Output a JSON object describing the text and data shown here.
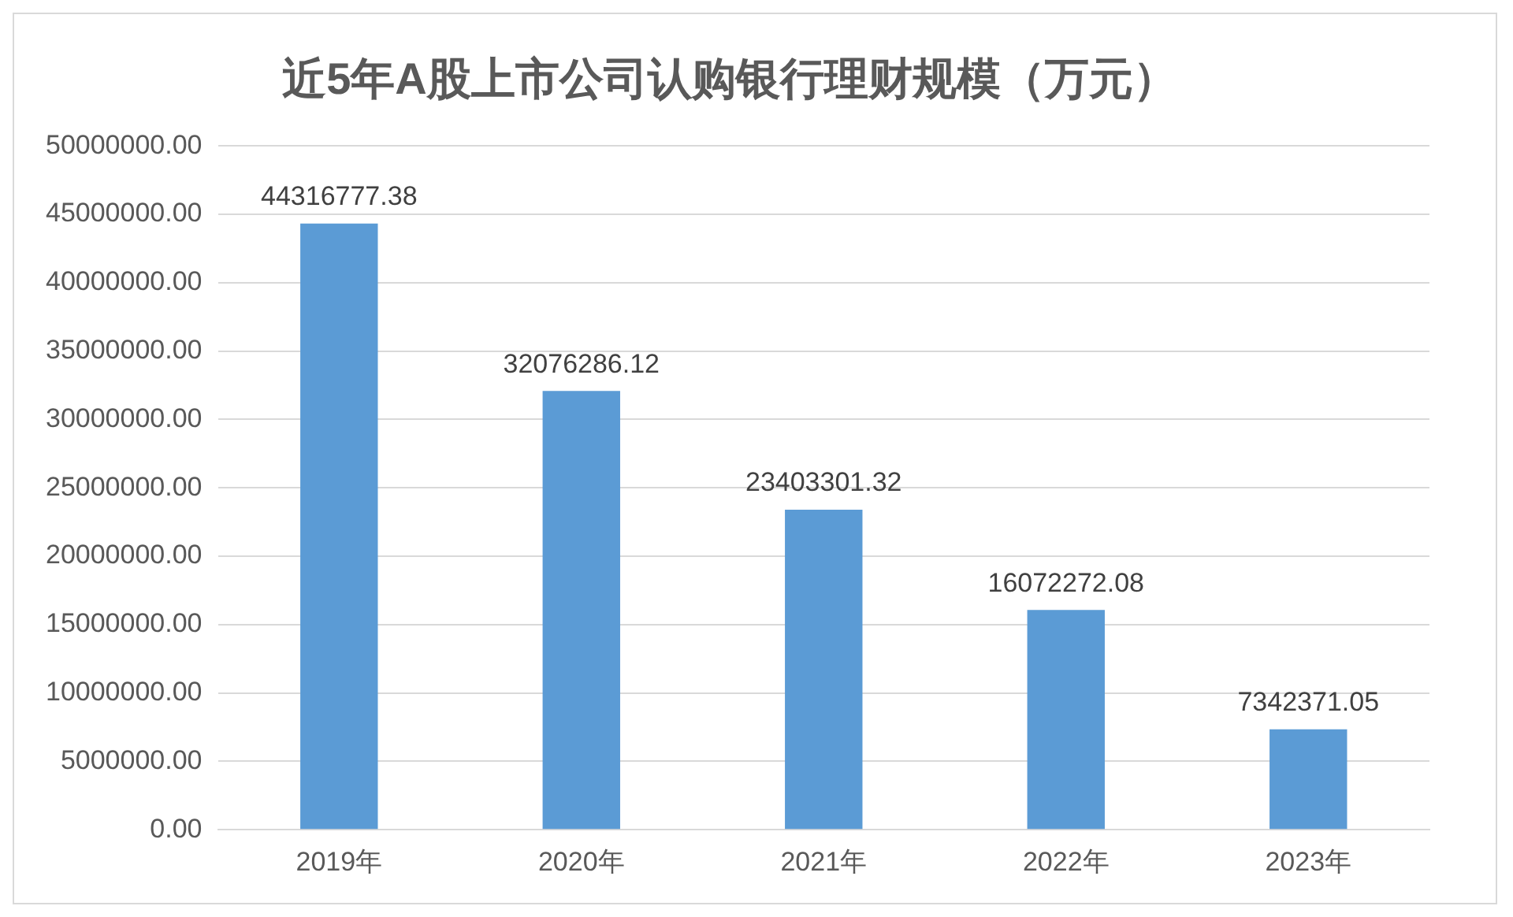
{
  "chart_data": {
    "type": "bar",
    "title": "近5年A股上市公司认购银行理财规模（万元）",
    "categories": [
      "2019年",
      "2020年",
      "2021年",
      "2022年",
      "2023年"
    ],
    "values": [
      44316777.38,
      32076286.12,
      23403301.32,
      16072272.08,
      7342371.05
    ],
    "color": "#5b9bd5",
    "ylim": [
      0,
      50000000
    ],
    "yticks": [
      {
        "value": 0,
        "label": "0.00"
      },
      {
        "value": 5000000,
        "label": "5000000.00"
      },
      {
        "value": 10000000,
        "label": "10000000.00"
      },
      {
        "value": 15000000,
        "label": "15000000.00"
      },
      {
        "value": 20000000,
        "label": "20000000.00"
      },
      {
        "value": 25000000,
        "label": "25000000.00"
      },
      {
        "value": 30000000,
        "label": "30000000.00"
      },
      {
        "value": 35000000,
        "label": "35000000.00"
      },
      {
        "value": 40000000,
        "label": "40000000.00"
      },
      {
        "value": 45000000,
        "label": "45000000.00"
      },
      {
        "value": 50000000,
        "label": "50000000.00"
      }
    ],
    "grid": "y",
    "data_labels": true,
    "legend": false
  }
}
